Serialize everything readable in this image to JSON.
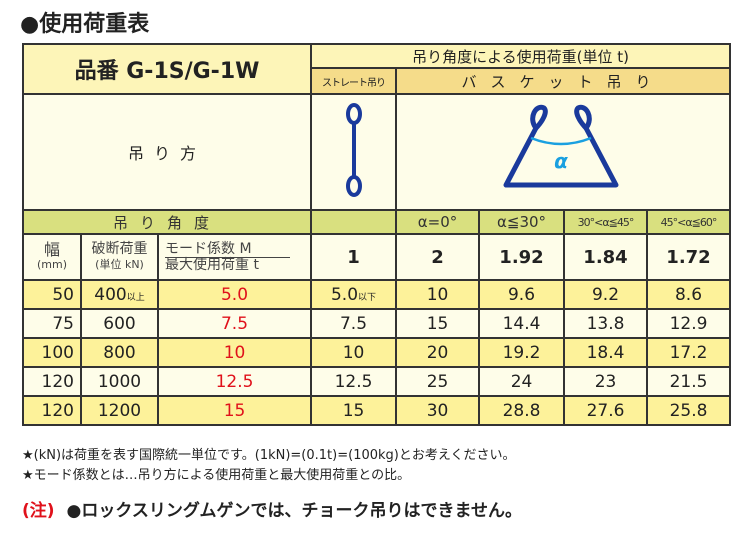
{
  "title": "●使用荷重表",
  "product": "品番 G-1S/G-1W",
  "load_by_angle": "吊り角度による使用荷重(単位 t)",
  "straight": "ストレート吊り",
  "basket": "バスケット吊り",
  "hanging_method": "吊り方",
  "alpha": "α",
  "angle_label": "吊り角度",
  "angles": [
    "α=0°",
    "α≦30°",
    "30°<α≦45°",
    "45°<α≦60°"
  ],
  "col_width": "幅",
  "col_width_unit": "(mm)",
  "col_break": "破断荷重",
  "col_break_unit": "(単位 kN)",
  "col_mode": "モード係数 M",
  "col_max": "最大使用荷重 t",
  "mode_factors": [
    "1",
    "2",
    "1.92",
    "1.84",
    "1.72"
  ],
  "rows": [
    {
      "width": "50",
      "break": "400",
      "break_suffix": "以上",
      "max": "5.0",
      "straight": "5.0",
      "straight_suffix": "以下",
      "b0": "10",
      "b30": "9.6",
      "b45": "9.2",
      "b60": "8.6"
    },
    {
      "width": "75",
      "break": "600",
      "break_suffix": "",
      "max": "7.5",
      "straight": "7.5",
      "straight_suffix": "",
      "b0": "15",
      "b30": "14.4",
      "b45": "13.8",
      "b60": "12.9"
    },
    {
      "width": "100",
      "break": "800",
      "break_suffix": "",
      "max": "10",
      "straight": "10",
      "straight_suffix": "",
      "b0": "20",
      "b30": "19.2",
      "b45": "18.4",
      "b60": "17.2"
    },
    {
      "width": "120",
      "break": "1000",
      "break_suffix": "",
      "max": "12.5",
      "straight": "12.5",
      "straight_suffix": "",
      "b0": "25",
      "b30": "24",
      "b45": "23",
      "b60": "21.5"
    },
    {
      "width": "120",
      "break": "1200",
      "break_suffix": "",
      "max": "15",
      "straight": "15",
      "straight_suffix": "",
      "b0": "30",
      "b30": "28.8",
      "b45": "27.6",
      "b60": "25.8"
    }
  ],
  "notes": [
    "★(kN)は荷重を表す国際統一単位です。(1kN)=(0.1t)=(100kg)とお考えください。",
    "★モード係数とは…吊り方による使用荷重と最大使用荷重との比。"
  ],
  "warning_label": "(注)",
  "warning": "●ロックスリングムゲンでは、チョーク吊りはできません。",
  "colors": {
    "red": "#e0111b",
    "sling_blue": "#1a3a9c",
    "arc_blue": "#1aa0e0"
  }
}
